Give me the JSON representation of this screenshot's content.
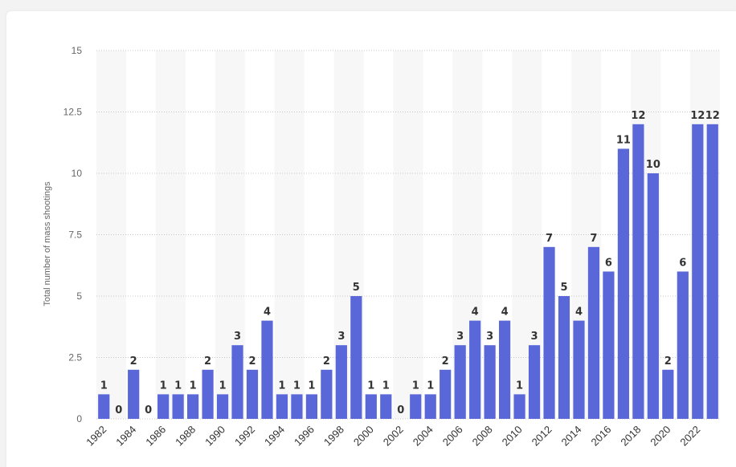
{
  "chart_data": {
    "type": "bar",
    "ylabel": "Total number of mass shootings",
    "xlabel": "",
    "ylim": [
      0,
      15
    ],
    "y_ticks": [
      "0",
      "2.5",
      "5",
      "7.5",
      "10",
      "12.5",
      "15"
    ],
    "grid": "horizontal dotted",
    "bar_color": "#5a67d8",
    "categories": [
      "1982",
      "1983",
      "1984",
      "1985",
      "1986",
      "1987",
      "1988",
      "1989",
      "1990",
      "1991",
      "1992",
      "1993",
      "1994",
      "1995",
      "1996",
      "1997",
      "1998",
      "1999",
      "2000",
      "2001",
      "2002",
      "2003",
      "2004",
      "2005",
      "2006",
      "2007",
      "2008",
      "2009",
      "2010",
      "2011",
      "2012",
      "2013",
      "2014",
      "2015",
      "2016",
      "2017",
      "2018",
      "2019",
      "2020",
      "2021",
      "2022",
      "2023"
    ],
    "x_tick_labels": [
      "1982",
      "1984",
      "1986",
      "1988",
      "1990",
      "1992",
      "1994",
      "1996",
      "1998",
      "2000",
      "2002",
      "2004",
      "2006",
      "2008",
      "2010",
      "2012",
      "2014",
      "2016",
      "2018",
      "2020",
      "2022"
    ],
    "values": [
      1,
      0,
      2,
      0,
      1,
      1,
      1,
      2,
      1,
      3,
      2,
      4,
      1,
      1,
      1,
      2,
      3,
      5,
      1,
      1,
      0,
      1,
      1,
      2,
      3,
      4,
      3,
      4,
      1,
      3,
      7,
      5,
      4,
      7,
      6,
      11,
      12,
      10,
      2,
      6,
      12,
      12
    ]
  }
}
